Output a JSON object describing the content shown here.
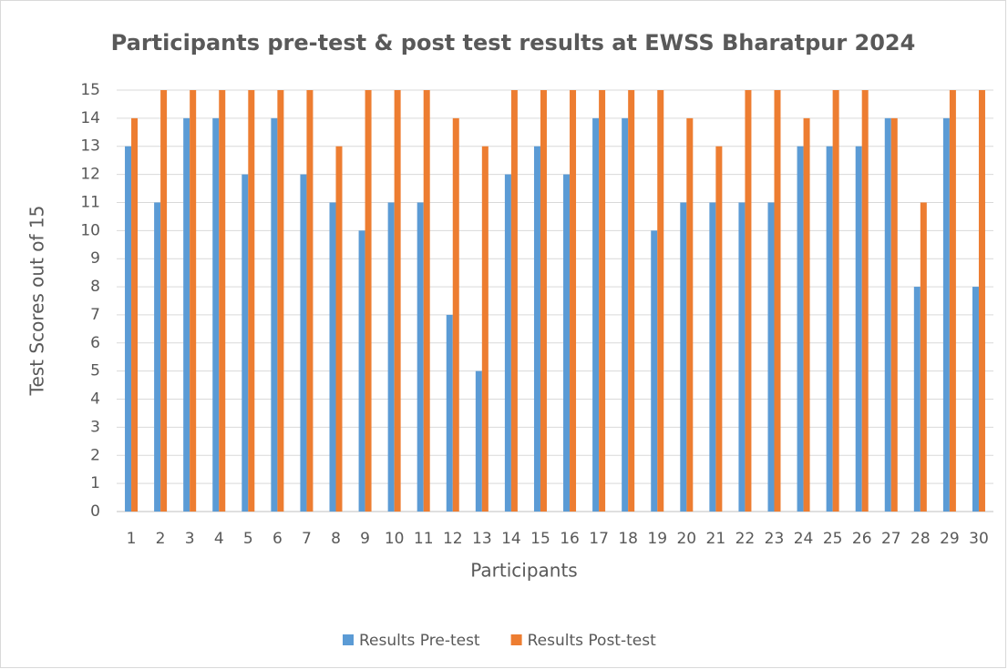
{
  "chart_data": {
    "type": "bar",
    "title": "Participants pre-test & post test results at EWSS Bharatpur 2024",
    "x_label": "Participants",
    "y_label": "Test Scores out of 15",
    "categories": [
      "1",
      "2",
      "3",
      "4",
      "5",
      "6",
      "7",
      "8",
      "9",
      "10",
      "11",
      "12",
      "13",
      "14",
      "15",
      "16",
      "17",
      "18",
      "19",
      "20",
      "21",
      "22",
      "23",
      "24",
      "25",
      "26",
      "27",
      "28",
      "29",
      "30"
    ],
    "series": [
      {
        "name": "Results Pre-test",
        "color": "#5b9bd5",
        "values": [
          13,
          11,
          14,
          14,
          12,
          14,
          12,
          11,
          10,
          11,
          11,
          7,
          5,
          12,
          13,
          12,
          14,
          14,
          10,
          11,
          11,
          11,
          11,
          13,
          13,
          13,
          14,
          8,
          14,
          8
        ]
      },
      {
        "name": "Results Post-test",
        "color": "#ed7d31",
        "values": [
          14,
          15,
          15,
          15,
          15,
          15,
          15,
          13,
          15,
          15,
          15,
          14,
          13,
          15,
          15,
          15,
          15,
          15,
          15,
          14,
          13,
          15,
          15,
          14,
          15,
          15,
          14,
          11,
          15,
          15
        ]
      }
    ],
    "ylim": [
      0,
      15
    ],
    "yticks": [
      0,
      1,
      2,
      3,
      4,
      5,
      6,
      7,
      8,
      9,
      10,
      11,
      12,
      13,
      14,
      15
    ],
    "grid": true,
    "legend": "bottom"
  }
}
